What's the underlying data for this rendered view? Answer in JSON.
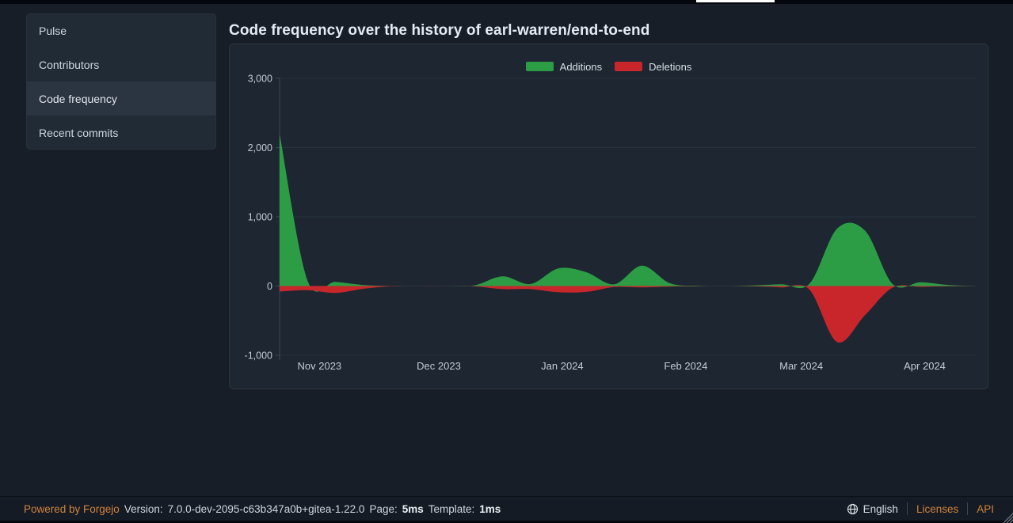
{
  "header": {
    "title": "Code frequency over the history of earl-warren/end-to-end"
  },
  "sidebar": {
    "items": [
      {
        "label": "Pulse",
        "active": false
      },
      {
        "label": "Contributors",
        "active": false
      },
      {
        "label": "Code frequency",
        "active": true
      },
      {
        "label": "Recent commits",
        "active": false
      }
    ]
  },
  "chart_data": {
    "type": "area",
    "title": "Code frequency over the history of earl-warren/end-to-end",
    "legend_position": "top-center",
    "grid": "horizontal",
    "ylim": [
      -1000,
      3000
    ],
    "y_ticks": [
      3000,
      2000,
      1000,
      0,
      -1000
    ],
    "y_tick_labels": [
      "3,000",
      "2,000",
      "1,000",
      "0",
      "-1,000"
    ],
    "x_tick_labels": [
      "Nov 2023",
      "Dec 2023",
      "Jan 2024",
      "Feb 2024",
      "Mar 2024",
      "Apr 2024"
    ],
    "x_tick_week_index": [
      1.43,
      5.71,
      10.14,
      14.57,
      18.71,
      23.14
    ],
    "x_week_starts": [
      "2023-10-22",
      "2023-10-29",
      "2023-11-05",
      "2023-11-12",
      "2023-11-19",
      "2023-11-26",
      "2023-12-03",
      "2023-12-10",
      "2023-12-17",
      "2023-12-24",
      "2023-12-31",
      "2024-01-07",
      "2024-01-14",
      "2024-01-21",
      "2024-01-28",
      "2024-02-04",
      "2024-02-11",
      "2024-02-18",
      "2024-02-25",
      "2024-03-03",
      "2024-03-10",
      "2024-03-17",
      "2024-03-24",
      "2024-03-31",
      "2024-04-07",
      "2024-04-14"
    ],
    "series": [
      {
        "name": "Additions",
        "color": "#2c9d45",
        "values": [
          2200,
          80,
          60,
          15,
          0,
          0,
          0,
          10,
          140,
          30,
          255,
          200,
          25,
          295,
          40,
          5,
          0,
          8,
          25,
          30,
          830,
          800,
          25,
          55,
          15,
          0
        ]
      },
      {
        "name": "Deletions",
        "color": "#c9262b",
        "values": [
          -80,
          -60,
          -100,
          -40,
          -5,
          0,
          0,
          -5,
          -45,
          -45,
          -90,
          -85,
          -15,
          -20,
          -8,
          -2,
          0,
          -5,
          -20,
          -50,
          -810,
          -420,
          -20,
          -12,
          -4,
          0
        ]
      }
    ]
  },
  "footer": {
    "powered_by": "Powered by Forgejo",
    "version_label": "Version:",
    "version": "7.0.0-dev-2095-c63b347a0b+gitea-1.22.0",
    "page_label": "Page:",
    "page_time": "5ms",
    "template_label": "Template:",
    "template_time": "1ms",
    "language": "English",
    "licenses": "Licenses",
    "api": "API"
  }
}
